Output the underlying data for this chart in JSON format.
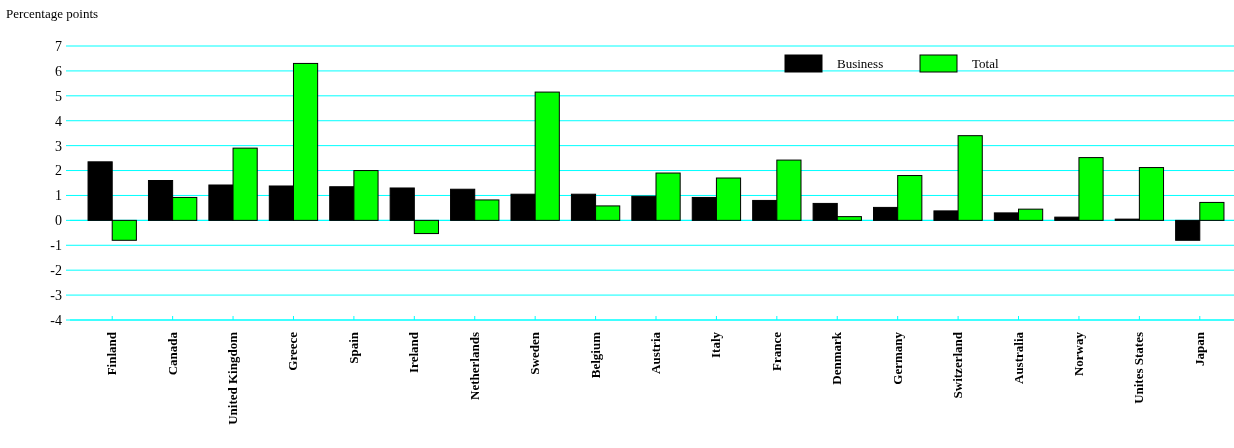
{
  "chart_data": {
    "type": "bar",
    "ylabel": "Percentage points",
    "categories": [
      "Finland",
      "Canada",
      "United Kingdom",
      "Greece",
      "Spain",
      "Ireland",
      "Netherlands",
      "Sweden",
      "Belgium",
      "Austria",
      "Italy",
      "France",
      "Denmark",
      "Germany",
      "Switzerland",
      "Australia",
      "Norway",
      "Unites States",
      "Japan"
    ],
    "series": [
      {
        "name": "Business",
        "color": "#000000",
        "values": [
          2.35,
          1.6,
          1.42,
          1.38,
          1.35,
          1.3,
          1.25,
          1.05,
          1.05,
          0.97,
          0.92,
          0.8,
          0.68,
          0.52,
          0.38,
          0.3,
          0.13,
          0.05,
          -0.8
        ]
      },
      {
        "name": "Total",
        "color": "#00ff00",
        "values": [
          -0.8,
          0.92,
          2.9,
          6.3,
          2.0,
          -0.53,
          0.82,
          5.15,
          0.58,
          1.9,
          1.7,
          2.42,
          0.15,
          1.8,
          3.4,
          0.45,
          2.52,
          2.12,
          0.72
        ]
      }
    ],
    "ylim": [
      -4,
      7
    ],
    "yticks": [
      -4,
      -3,
      -2,
      -1,
      0,
      1,
      2,
      3,
      4,
      5,
      6,
      7
    ],
    "grid": "y",
    "legend": "top right"
  }
}
